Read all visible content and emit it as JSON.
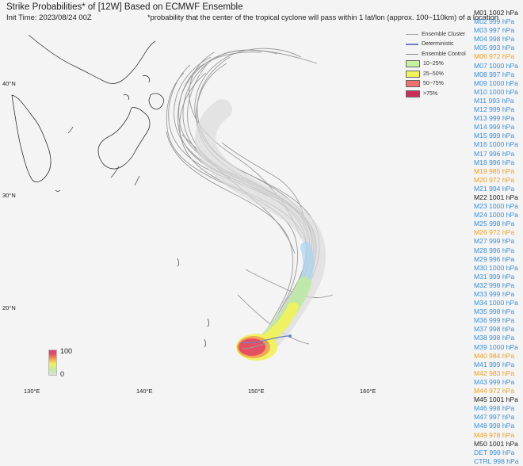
{
  "title": "Strike Probabilities* of [12W] Based on ECMWF Ensemble",
  "init_time": "Init Time: 2023/08/24 00Z",
  "footnote": "*probability that the center of the tropical cyclone will pass within 1 lat/lon (approx. 100~110km) of a location",
  "legend": {
    "ensemble_cluster": "Ensemble Cluster",
    "deterministic": "Deterministic",
    "ensemble_control": "Ensemble Control",
    "p1": "10~25%",
    "p2": "25~50%",
    "p3": "50~75%",
    "p4": ">75%",
    "colors": {
      "p1": "#c7f0a0",
      "p2": "#f2f25a",
      "p3": "#f07070",
      "p4": "#c8305a"
    }
  },
  "colorbar": {
    "max": "100",
    "min": "0"
  },
  "lat_labels": [
    "40°N",
    "30°N",
    "20°N"
  ],
  "lon_labels": [
    "130°E",
    "140°E",
    "150°E",
    "160°E"
  ],
  "member_colors": {
    "blue": "#3a8fd8",
    "orange": "#f0a020",
    "black": "#222222"
  },
  "members": [
    {
      "label": "M01 1002 hPa",
      "c": "black"
    },
    {
      "label": "M02 999 hPa",
      "c": "blue"
    },
    {
      "label": "M03 997 hPa",
      "c": "blue"
    },
    {
      "label": "M04 998 hPa",
      "c": "blue"
    },
    {
      "label": "M05 993 hPa",
      "c": "blue"
    },
    {
      "label": "M06 972 hPa",
      "c": "orange"
    },
    {
      "label": "M07 1000 hPa",
      "c": "blue"
    },
    {
      "label": "M08 997 hPa",
      "c": "blue"
    },
    {
      "label": "M09 1000 hPa",
      "c": "blue"
    },
    {
      "label": "M10 1000 hPa",
      "c": "blue"
    },
    {
      "label": "M11 993 hPa",
      "c": "blue"
    },
    {
      "label": "M12 999 hPa",
      "c": "blue"
    },
    {
      "label": "M13 999 hPa",
      "c": "blue"
    },
    {
      "label": "M14 999 hPa",
      "c": "blue"
    },
    {
      "label": "M15 999 hPa",
      "c": "blue"
    },
    {
      "label": "M16 1000 hPa",
      "c": "blue"
    },
    {
      "label": "M17 996 hPa",
      "c": "blue"
    },
    {
      "label": "M18 996 hPa",
      "c": "blue"
    },
    {
      "label": "M19 985 hPa",
      "c": "orange"
    },
    {
      "label": "M20 972 hPa",
      "c": "orange"
    },
    {
      "label": "M21 994 hPa",
      "c": "blue"
    },
    {
      "label": "M22 1001 hPa",
      "c": "black"
    },
    {
      "label": "M23 1000 hPa",
      "c": "blue"
    },
    {
      "label": "M24 1000 hPa",
      "c": "blue"
    },
    {
      "label": "M25 998 hPa",
      "c": "blue"
    },
    {
      "label": "M26 972 hPa",
      "c": "orange"
    },
    {
      "label": "M27 999 hPa",
      "c": "blue"
    },
    {
      "label": "M28 996 hPa",
      "c": "blue"
    },
    {
      "label": "M29 996 hPa",
      "c": "blue"
    },
    {
      "label": "M30 1000 hPa",
      "c": "blue"
    },
    {
      "label": "M31 999 hPa",
      "c": "blue"
    },
    {
      "label": "M32 998 hPa",
      "c": "blue"
    },
    {
      "label": "M33 999 hPa",
      "c": "blue"
    },
    {
      "label": "M34 1000 hPa",
      "c": "blue"
    },
    {
      "label": "M35 998 hPa",
      "c": "blue"
    },
    {
      "label": "M36 999 hPa",
      "c": "blue"
    },
    {
      "label": "M37 998 hPa",
      "c": "blue"
    },
    {
      "label": "M38 998 hPa",
      "c": "blue"
    },
    {
      "label": "M39 1000 hPa",
      "c": "blue"
    },
    {
      "label": "M40 984 hPa",
      "c": "orange"
    },
    {
      "label": "M41 999 hPa",
      "c": "blue"
    },
    {
      "label": "M42 983 hPa",
      "c": "orange"
    },
    {
      "label": "M43 999 hPa",
      "c": "blue"
    },
    {
      "label": "M44 972 hPa",
      "c": "orange"
    },
    {
      "label": "M45 1001 hPa",
      "c": "black"
    },
    {
      "label": "M46 998 hPa",
      "c": "blue"
    },
    {
      "label": "M47 997 hPa",
      "c": "blue"
    },
    {
      "label": "M48 998 hPa",
      "c": "blue"
    },
    {
      "label": "M49 978 hPa",
      "c": "orange"
    },
    {
      "label": "M50 1001 hPa",
      "c": "black"
    },
    {
      "label": "DET 999 hPa",
      "c": "blue"
    },
    {
      "label": "CTRL 998 hPa",
      "c": "blue"
    }
  ]
}
